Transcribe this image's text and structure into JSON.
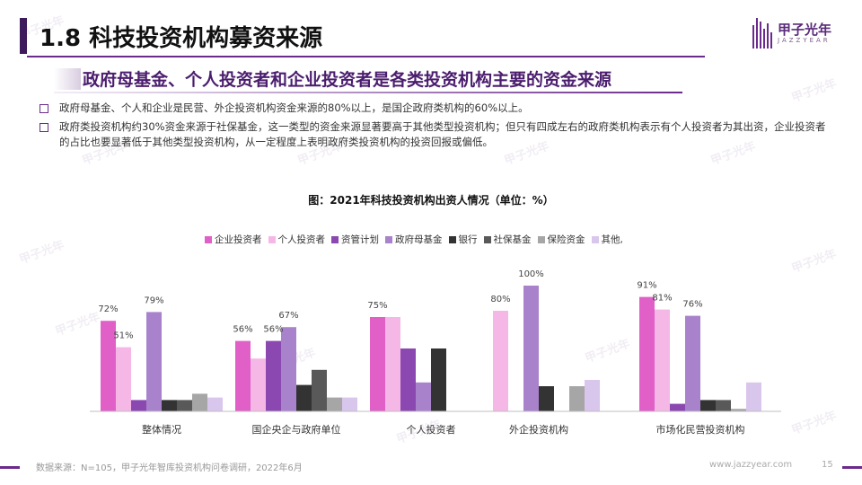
{
  "header": {
    "title": "1.8 科技投资机构募资来源",
    "logo_text": "甲子光年",
    "logo_sub": "JAZZYEAR"
  },
  "subtitle": "政府母基金、个人投资者和企业投资者是各类投资机构主要的资金来源",
  "bullets": [
    "政府母基金、个人和企业是民营、外企投资机构资金来源的80%以上，是国企政府类机构的60%以上。",
    "政府类投资机构约30%资金来源于社保基金，这一类型的资金来源显著要高于其他类型投资机构；但只有四成左右的政府类机构表示有个人投资者为其出资，企业投资者的占比也要显著低于其他类型投资机构，从一定程度上表明政府类投资机构的投资回报或偏低。"
  ],
  "footer": {
    "source": "数据来源：N=105，甲子光年智库投资机构问卷调研，2022年6月",
    "url": "www.jazzyear.com",
    "page": "15"
  },
  "colors": {
    "brand": "#6b2a8c",
    "series": [
      "#e060c8",
      "#f5b8e6",
      "#8a48b0",
      "#a883cc",
      "#333333",
      "#595959",
      "#a6a6a6",
      "#d9c6ec"
    ]
  },
  "chart_data": {
    "type": "bar",
    "title": "图：2021年科技投资机构出资人情况（单位：%）",
    "categories": [
      "整体情况",
      "国企央企与政府单位",
      "个人投资者",
      "外企投资机构",
      "市场化民营投资机构"
    ],
    "ylim": [
      0,
      100
    ],
    "legend_position": "top",
    "grid": false,
    "series": [
      {
        "name": "企业投资者",
        "values": [
          72,
          56,
          75,
          0,
          91
        ]
      },
      {
        "name": "个人投资者",
        "values": [
          51,
          42,
          75,
          80,
          81
        ]
      },
      {
        "name": "资管计划",
        "values": [
          9,
          56,
          50,
          0,
          6
        ]
      },
      {
        "name": "政府母基金",
        "values": [
          79,
          67,
          23,
          100,
          76
        ]
      },
      {
        "name": "银行",
        "values": [
          9,
          21,
          50,
          20,
          9
        ]
      },
      {
        "name": "社保基金",
        "values": [
          9,
          33,
          0,
          0,
          9
        ]
      },
      {
        "name": "保险资金",
        "values": [
          14,
          11,
          0,
          20,
          2
        ]
      },
      {
        "name": "其他,",
        "values": [
          11,
          11,
          0,
          25,
          23
        ]
      }
    ],
    "data_labels": [
      {
        "series": 0,
        "category": 0,
        "text": "72%"
      },
      {
        "series": 1,
        "category": 0,
        "text": "51%"
      },
      {
        "series": 3,
        "category": 0,
        "text": "79%"
      },
      {
        "series": 0,
        "category": 1,
        "text": "56%"
      },
      {
        "series": 2,
        "category": 1,
        "text": "56%"
      },
      {
        "series": 3,
        "category": 1,
        "text": "67%"
      },
      {
        "series": 0,
        "category": 2,
        "text": "75%"
      },
      {
        "series": 1,
        "category": 3,
        "text": "80%"
      },
      {
        "series": 3,
        "category": 3,
        "text": "100%"
      },
      {
        "series": 0,
        "category": 4,
        "text": "91%"
      },
      {
        "series": 1,
        "category": 4,
        "text": "81%"
      },
      {
        "series": 3,
        "category": 4,
        "text": "76%"
      }
    ]
  }
}
